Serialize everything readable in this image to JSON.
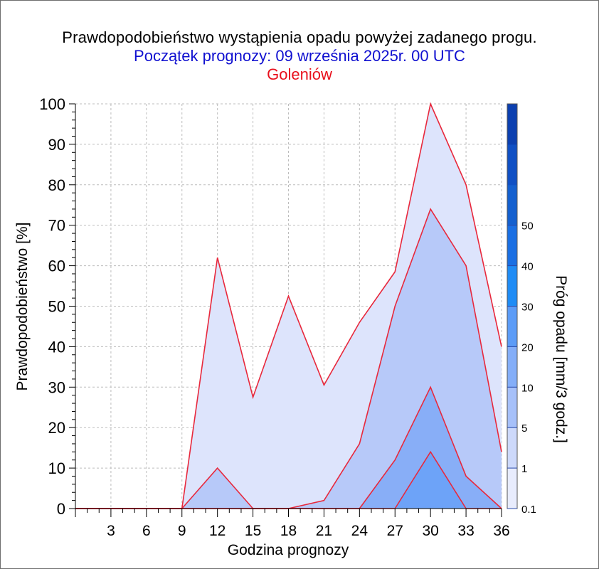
{
  "header": {
    "title": "Prawdopodobieństwo wystąpienia opadu powyżej zadanego progu.",
    "subtitle": "Początek prognozy: 09 września 2025r. 00 UTC",
    "location": "Goleniów"
  },
  "chart_data": {
    "type": "area",
    "xlabel": "Godzina prognozy",
    "ylabel": "Prawdopodobieństwo [%]",
    "colorbar_label": "Próg opadu [mm/3 godz.]",
    "x": [
      0,
      3,
      6,
      9,
      12,
      15,
      18,
      21,
      24,
      27,
      30,
      33,
      36
    ],
    "x_ticks": [
      3,
      6,
      9,
      12,
      15,
      18,
      21,
      24,
      27,
      30,
      33,
      36
    ],
    "xlim": [
      0,
      36
    ],
    "y_ticks": [
      0,
      10,
      20,
      30,
      40,
      50,
      60,
      70,
      80,
      90,
      100
    ],
    "ylim": [
      0,
      100
    ],
    "grid": true,
    "series": [
      {
        "threshold": "0.1",
        "color": "#dde4fc",
        "values": [
          0,
          0,
          0,
          0,
          62,
          27.5,
          52.5,
          30.5,
          46,
          58.5,
          100,
          80,
          40
        ]
      },
      {
        "threshold": "1",
        "color": "#b7c9f9",
        "values": [
          0,
          0,
          0,
          0,
          10,
          0,
          0,
          2,
          16,
          50,
          74,
          60,
          14
        ]
      },
      {
        "threshold": "5",
        "color": "#88aef7",
        "values": [
          0,
          0,
          0,
          0,
          0,
          0,
          0,
          0,
          0,
          12,
          30,
          8,
          0
        ]
      },
      {
        "threshold": "10",
        "color": "#6da3f8",
        "values": [
          0,
          0,
          0,
          0,
          0,
          0,
          0,
          0,
          0,
          0,
          14,
          0,
          0
        ]
      }
    ],
    "colorbar": {
      "labels": [
        "0.1",
        "1",
        "5",
        "10",
        "20",
        "30",
        "40",
        "50"
      ],
      "colors": [
        "#e8ecfd",
        "#cdd9fb",
        "#a6c0f9",
        "#84aef8",
        "#5c9cf7",
        "#1f8cf5",
        "#1a6fe3",
        "#1460cf",
        "#1050c4",
        "#0c40b0"
      ]
    }
  }
}
